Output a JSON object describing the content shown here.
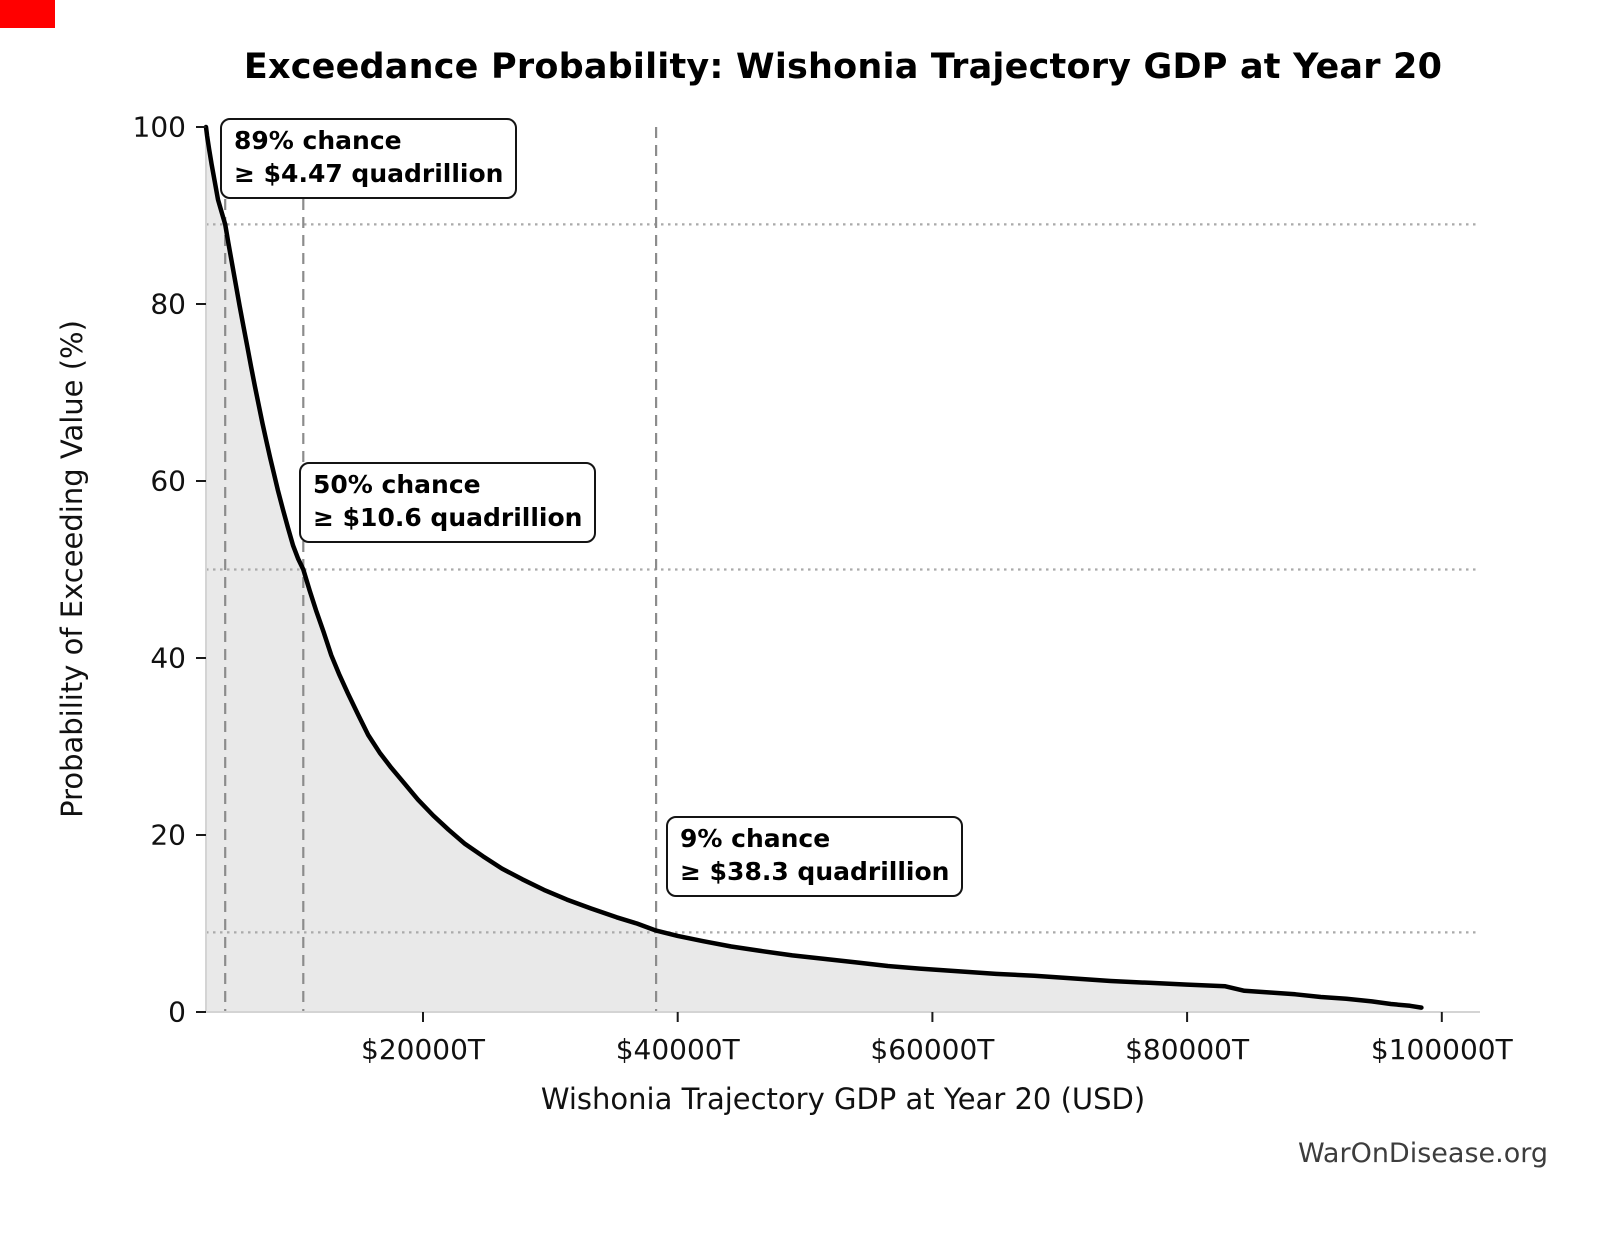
{
  "screen_marker": {
    "color": "#ff0000"
  },
  "chart_data": {
    "type": "line",
    "title": "Exceedance Probability: Wishonia Trajectory GDP at Year 20",
    "xlabel": "Wishonia Trajectory GDP at Year 20 (USD)",
    "ylabel": "Probability of Exceeding Value (%)",
    "watermark": "WarOnDisease.org",
    "xlim": [
      2960,
      103000
    ],
    "ylim": [
      0,
      100
    ],
    "grid": "off",
    "legend": "none",
    "x_ticks": [
      {
        "value": 20000,
        "label": "$20000T"
      },
      {
        "value": 40000,
        "label": "$40000T"
      },
      {
        "value": 60000,
        "label": "$60000T"
      },
      {
        "value": 80000,
        "label": "$80000T"
      },
      {
        "value": 100000,
        "label": "$100000T"
      }
    ],
    "y_ticks": [
      {
        "value": 0,
        "label": "0"
      },
      {
        "value": 20,
        "label": "20"
      },
      {
        "value": 40,
        "label": "40"
      },
      {
        "value": 60,
        "label": "60"
      },
      {
        "value": 80,
        "label": "80"
      },
      {
        "value": 100,
        "label": "100"
      }
    ],
    "guides": [
      {
        "probability": 89,
        "gdp_t": 4470,
        "line1": "89% chance",
        "line2": "≥ $4.47 quadrillion"
      },
      {
        "probability": 50,
        "gdp_t": 10600,
        "line1": "50% chance",
        "line2": "≥ $10.6 quadrillion"
      },
      {
        "probability": 9,
        "gdp_t": 38300,
        "line1": "9% chance",
        "line2": "≥ $38.3 quadrillion"
      }
    ],
    "series": [
      {
        "name": "exceedance-probability",
        "points": [
          [
            2960,
            100
          ],
          [
            3050,
            99
          ],
          [
            3200,
            97.5
          ],
          [
            3400,
            95.8
          ],
          [
            3650,
            93.8
          ],
          [
            3900,
            91.8
          ],
          [
            4200,
            90.3
          ],
          [
            4470,
            89
          ],
          [
            4700,
            87
          ],
          [
            5000,
            84.6
          ],
          [
            5300,
            82.2
          ],
          [
            5600,
            79.8
          ],
          [
            5900,
            77.5
          ],
          [
            6200,
            75.2
          ],
          [
            6500,
            72.9
          ],
          [
            6800,
            70.7
          ],
          [
            7100,
            68.6
          ],
          [
            7400,
            66.5
          ],
          [
            7700,
            64.5
          ],
          [
            8000,
            62.6
          ],
          [
            8300,
            60.8
          ],
          [
            8600,
            59
          ],
          [
            9000,
            56.8
          ],
          [
            9400,
            54.7
          ],
          [
            9800,
            52.7
          ],
          [
            10200,
            51.2
          ],
          [
            10600,
            50
          ],
          [
            11100,
            47.6
          ],
          [
            11600,
            45.4
          ],
          [
            12200,
            42.9
          ],
          [
            12800,
            40.3
          ],
          [
            13400,
            38.2
          ],
          [
            14100,
            36
          ],
          [
            14900,
            33.6
          ],
          [
            15700,
            31.3
          ],
          [
            16600,
            29.3
          ],
          [
            17500,
            27.6
          ],
          [
            18500,
            25.9
          ],
          [
            19600,
            24
          ],
          [
            20800,
            22.2
          ],
          [
            22000,
            20.6
          ],
          [
            23300,
            19
          ],
          [
            24700,
            17.6
          ],
          [
            26200,
            16.2
          ],
          [
            27800,
            15
          ],
          [
            29500,
            13.8
          ],
          [
            31300,
            12.7
          ],
          [
            33200,
            11.7
          ],
          [
            35200,
            10.7
          ],
          [
            36800,
            10
          ],
          [
            38300,
            9.2
          ],
          [
            40000,
            8.6
          ],
          [
            42000,
            8
          ],
          [
            44200,
            7.4
          ],
          [
            46500,
            6.9
          ],
          [
            49000,
            6.4
          ],
          [
            51500,
            6
          ],
          [
            54000,
            5.6
          ],
          [
            56500,
            5.2
          ],
          [
            59000,
            4.9
          ],
          [
            62000,
            4.6
          ],
          [
            65000,
            4.3
          ],
          [
            68000,
            4.1
          ],
          [
            71000,
            3.8
          ],
          [
            74000,
            3.5
          ],
          [
            77000,
            3.3
          ],
          [
            80000,
            3.1
          ],
          [
            83000,
            2.9
          ],
          [
            84500,
            2.4
          ],
          [
            86500,
            2.2
          ],
          [
            88500,
            2
          ],
          [
            90500,
            1.7
          ],
          [
            92500,
            1.5
          ],
          [
            94500,
            1.2
          ],
          [
            96000,
            0.9
          ],
          [
            97500,
            0.7
          ],
          [
            98400,
            0.5
          ]
        ]
      }
    ],
    "colors": {
      "curve": "#000000",
      "fill": "#e9e9e9",
      "guide_dashed": "#8c8c8c",
      "guide_dotted": "#aaaaaa",
      "spine": "#d4d4d4",
      "tick": "#1a1a1a",
      "tick_label": "#111111",
      "watermark": "#3d3d3d"
    }
  }
}
